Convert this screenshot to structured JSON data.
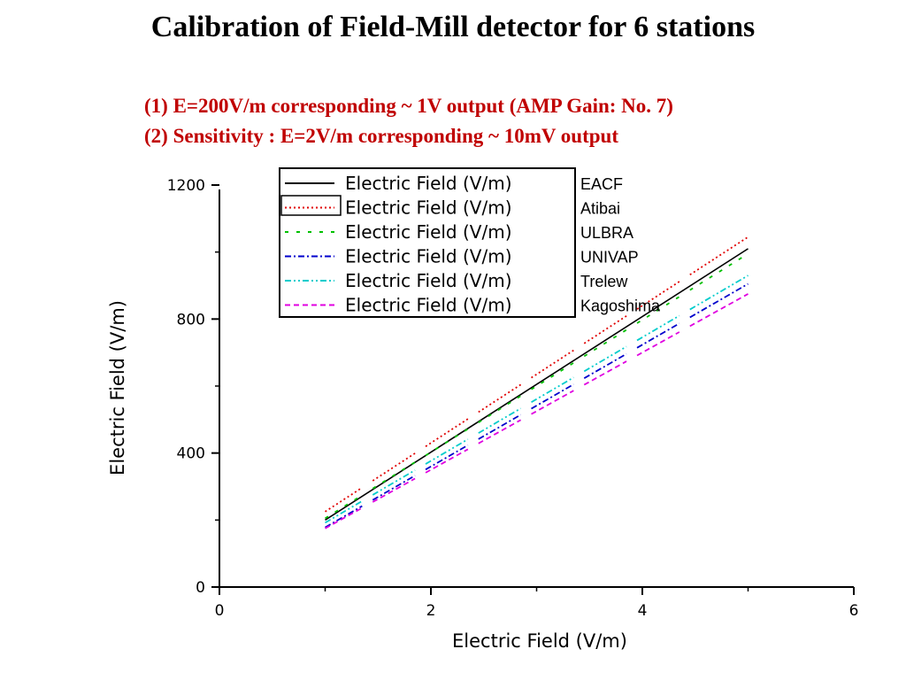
{
  "slide": {
    "title": "Calibration of Field-Mill detector for 6 stations",
    "notes": [
      "(1) E=200V/m  corresponding  ~ 1V output (AMP Gain: No. 7)",
      "(2) Sensitivity :  E=2V/m  corresponding  ~ 10mV output"
    ]
  },
  "chart_data": {
    "type": "line",
    "title": "",
    "xlabel": "Electric Field (V/m)",
    "ylabel": "Electric Field (V/m)",
    "xlim": [
      0,
      6
    ],
    "ylim": [
      0,
      1200
    ],
    "xticks": [
      0,
      2,
      4,
      6
    ],
    "yticks": [
      0,
      400,
      800,
      1200
    ],
    "grid": false,
    "legend_placement": "top-left",
    "x": [
      1.0,
      5.0
    ],
    "series": [
      {
        "name": "Electric Field (V/m)",
        "station": "EACF",
        "values": [
          200,
          1010
        ],
        "color": "#000000",
        "dash": "solid"
      },
      {
        "name": "Electric Field (V/m)",
        "station": "Atibai",
        "values": [
          225,
          1045
        ],
        "color": "#e00000",
        "dash": "dot"
      },
      {
        "name": "Electric Field (V/m)",
        "station": "ULBRA",
        "values": [
          205,
          995
        ],
        "color": "#00c000",
        "dash": "dash"
      },
      {
        "name": "Electric Field (V/m)",
        "station": "UNIVAP",
        "values": [
          178,
          905
        ],
        "color": "#0000cc",
        "dash": "dashdot"
      },
      {
        "name": "Electric Field (V/m)",
        "station": "Trelew",
        "values": [
          192,
          930
        ],
        "color": "#00cccc",
        "dash": "dashdotdot"
      },
      {
        "name": "Electric Field (V/m)",
        "station": "Kagoshima",
        "values": [
          175,
          875
        ],
        "color": "#e000e0",
        "dash": "longdash"
      }
    ]
  }
}
